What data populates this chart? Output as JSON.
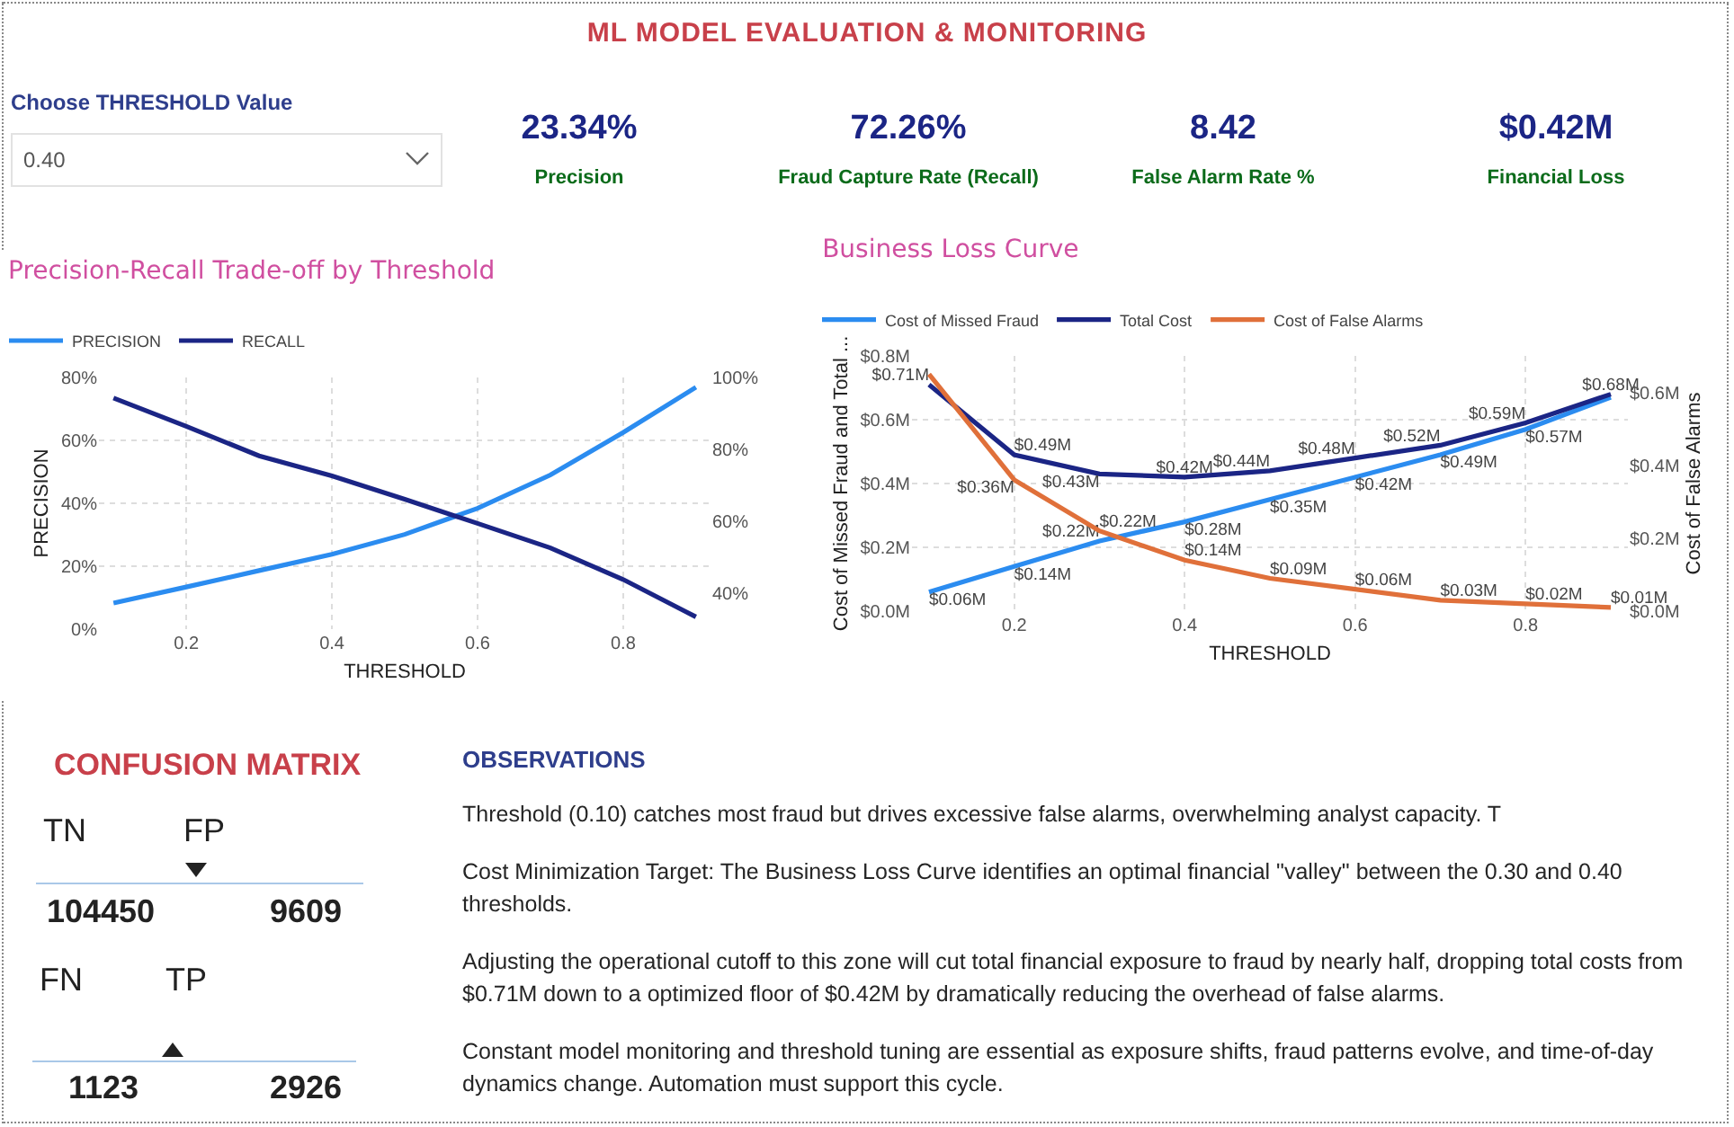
{
  "chart_data": [
    {
      "type": "other",
      "title": "ML MODEL EVALUATION & MONITORING",
      "annotations": [
        "Choose THRESHOLD Value",
        "0.40",
        "23.34%",
        "Precision",
        "72.26%",
        "Fraud Capture Rate (Recall)",
        "8.42",
        "False Alarm Rate %",
        "$0.42M",
        "Financial Loss"
      ]
    },
    {
      "type": "line",
      "title": "Precision-Recall Trade-off by Threshold",
      "xlabel": "THRESHOLD",
      "ylabel": "PRECISION",
      "x": [
        0.1,
        0.2,
        0.3,
        0.4,
        0.5,
        0.6,
        0.7,
        0.8,
        0.9
      ],
      "series": [
        {
          "name": "PRECISION",
          "color": "#2b8cf0",
          "values": [
            8.3,
            13.4,
            18.6,
            23.8,
            30.1,
            38.4,
            49,
            62.5,
            76.9
          ]
        },
        {
          "name": "RECALL",
          "color": "#1b2585",
          "axis": "y2",
          "values": [
            94.3,
            86.4,
            78.2,
            72.6,
            66.1,
            59.4,
            52.6,
            43.8,
            33.4
          ]
        }
      ],
      "xlim": [
        0.08,
        0.92
      ],
      "xticks": [
        0.2,
        0.4,
        0.6,
        0.8
      ],
      "ylim": [
        0,
        80
      ],
      "yticks": [
        {
          "value": 0,
          "label": "0%"
        },
        {
          "value": 20,
          "label": "20%"
        },
        {
          "value": 40,
          "label": "40%"
        },
        {
          "value": 60,
          "label": "60%"
        },
        {
          "value": 80,
          "label": "80%"
        }
      ],
      "y2lim": [
        30,
        100
      ],
      "y2ticks": [
        {
          "value": 40,
          "label": "40%"
        },
        {
          "value": 60,
          "label": "60%"
        },
        {
          "value": 80,
          "label": "80%"
        },
        {
          "value": 100,
          "label": "100%"
        }
      ],
      "grid": true,
      "legend": "top left"
    },
    {
      "type": "line",
      "title": "Business Loss Curve",
      "xlabel": "THRESHOLD",
      "ylabel": "Cost of Missed Fraud and Total ...",
      "y2label": "Cost of False Alarms",
      "x": [
        0.1,
        0.2,
        0.3,
        0.4,
        0.5,
        0.6,
        0.7,
        0.8,
        0.9
      ],
      "series": [
        {
          "name": "Cost of Missed Fraud",
          "color": "#2b8cf0",
          "values": [
            0.06,
            0.14,
            0.22,
            0.28,
            0.35,
            0.42,
            0.49,
            0.57,
            0.67
          ],
          "value_labels": [
            "$0.06M",
            "$0.14M",
            "$0.22M",
            "$0.28M",
            "$0.35M",
            "$0.42M",
            "$0.49M",
            "$0.57M",
            null
          ]
        },
        {
          "name": "Total Cost",
          "color": "#1b2585",
          "values": [
            0.71,
            0.49,
            0.43,
            0.42,
            0.44,
            0.48,
            0.52,
            0.59,
            0.68
          ],
          "value_labels": [
            "$0.71M",
            "$0.49M",
            "$0.43M",
            "$0.42M",
            "$0.44M",
            "$0.48M",
            "$0.52M",
            "$0.59M",
            "$0.68M"
          ]
        },
        {
          "name": "Cost of False Alarms",
          "color": "#e0703a",
          "axis": "y2",
          "values": [
            0.65,
            0.36,
            0.22,
            0.14,
            0.09,
            0.06,
            0.03,
            0.02,
            0.01
          ],
          "value_labels": [
            null,
            "$0.36M",
            "$0.22M",
            "$0.14M",
            "$0.09M",
            "$0.06M",
            "$0.03M",
            "$0.02M",
            "$0.01M"
          ]
        }
      ],
      "xlim": [
        0.08,
        0.92
      ],
      "xticks": [
        0.2,
        0.4,
        0.6,
        0.8
      ],
      "ylim": [
        0,
        0.8
      ],
      "yticks": [
        {
          "value": 0,
          "label": "$0.0M"
        },
        {
          "value": 0.2,
          "label": "$0.2M"
        },
        {
          "value": 0.4,
          "label": "$0.4M"
        },
        {
          "value": 0.6,
          "label": "$0.6M"
        },
        {
          "value": 0.8,
          "label": "$0.8M"
        }
      ],
      "y2lim": [
        0,
        0.7
      ],
      "y2ticks": [
        {
          "value": 0,
          "label": "$0.0M"
        },
        {
          "value": 0.2,
          "label": "$0.2M"
        },
        {
          "value": 0.4,
          "label": "$0.4M"
        },
        {
          "value": 0.6,
          "label": "$0.6M"
        }
      ],
      "grid": true,
      "legend": "top left"
    },
    {
      "type": "other",
      "title": "CONFUSION MATRIX",
      "annotations": [
        "TN",
        "FP",
        "104450",
        "9609",
        "FN",
        "TP",
        "1123",
        "2926"
      ]
    },
    {
      "type": "other",
      "title": "OBSERVATIONS",
      "annotations": [
        "Threshold (0.10) catches most fraud but drives excessive false alarms, overwhelming analyst capacity. T",
        "Cost Minimization Target: The Business Loss Curve identifies an optimal financial \"valley\" between the 0.30 and 0.40 thresholds.",
        "Adjusting the operational cutoff to this zone will cut total financial exposure to fraud by nearly half, dropping total costs from $0.71M down to a optimized floor of $0.42M by dramatically reducing the overhead of false alarms.",
        "Constant model monitoring and threshold tuning are essential as exposure shifts, fraud patterns evolve, and time-of-day dynamics change. Automation must support this cycle."
      ]
    }
  ]
}
